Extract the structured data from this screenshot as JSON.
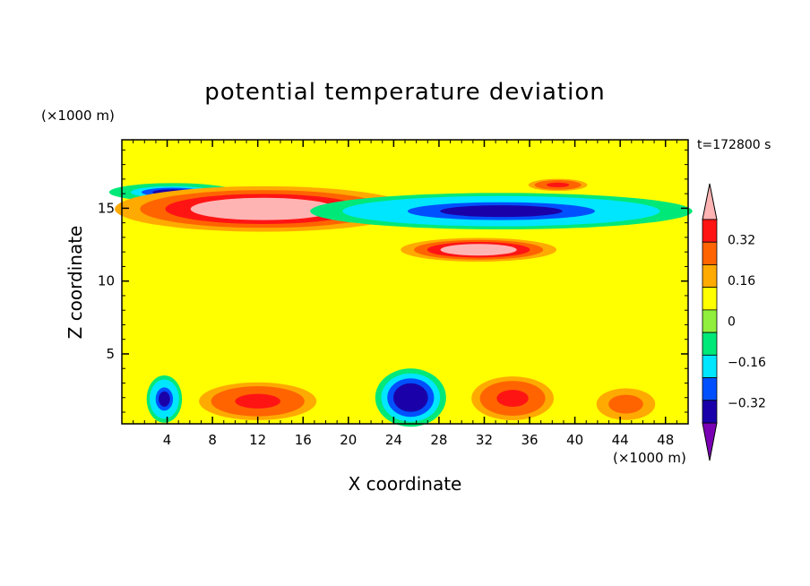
{
  "chart_data": {
    "type": "heatmap",
    "title": "potential temperature deviation",
    "xlabel": "X coordinate",
    "ylabel": "Z coordinate",
    "x_unit": "(×1000 m)",
    "y_unit": "(×1000 m)",
    "time_label": "t=172800 s",
    "xlim": [
      0,
      50
    ],
    "ylim": [
      0.2,
      19.7
    ],
    "x_ticks": [
      4,
      8,
      12,
      16,
      20,
      24,
      28,
      32,
      36,
      40,
      44,
      48
    ],
    "y_ticks": [
      5,
      10,
      15
    ],
    "colorbar": {
      "levels": [
        -0.4,
        -0.32,
        -0.24,
        -0.16,
        -0.08,
        0,
        0.08,
        0.16,
        0.24,
        0.32,
        0.4
      ],
      "tick_labels": [
        "0.32",
        "0.16",
        "0",
        "−0.16",
        "−0.32"
      ],
      "tick_values": [
        0.32,
        0.16,
        0,
        -0.16,
        -0.32
      ],
      "colors": [
        "#7a00b4",
        "#1a00a8",
        "#0050ff",
        "#00e6ff",
        "#00e878",
        "#90ee3c",
        "#ffff00",
        "#ffaa00",
        "#ff6400",
        "#ff1414",
        "#ffb4b4"
      ],
      "extend": "both"
    },
    "features": [
      {
        "name": "upper cold band",
        "x": [
          0,
          9
        ],
        "z": [
          15.6,
          16.6
        ],
        "value": -0.36
      },
      {
        "name": "upper warm band",
        "x": [
          2,
          23
        ],
        "z": [
          13.7,
          16.2
        ],
        "value": 0.42
      },
      {
        "name": "mid-level cold band",
        "x": [
          20,
          47
        ],
        "z": [
          13.8,
          15.8
        ],
        "value": -0.38
      },
      {
        "name": "warm patch",
        "x": [
          26,
          37
        ],
        "z": [
          11.5,
          12.8
        ],
        "value": 0.42
      },
      {
        "name": "warm patch upper right",
        "x": [
          36,
          41
        ],
        "z": [
          16.2,
          17.0
        ],
        "value": 0.26
      },
      {
        "name": "low cold cell",
        "x": [
          2.5,
          5
        ],
        "z": [
          0.6,
          3.2
        ],
        "value": -0.38
      },
      {
        "name": "low warm region",
        "x": [
          7,
          17
        ],
        "z": [
          0.5,
          3.0
        ],
        "value": 0.26
      },
      {
        "name": "low cold cell center",
        "x": [
          23,
          28
        ],
        "z": [
          0.4,
          3.6
        ],
        "value": -0.4
      },
      {
        "name": "low warm cell",
        "x": [
          31,
          38
        ],
        "z": [
          0.5,
          3.4
        ],
        "value": 0.28
      },
      {
        "name": "low warm cell right",
        "x": [
          42,
          47
        ],
        "z": [
          0.5,
          2.6
        ],
        "value": 0.22
      }
    ]
  }
}
